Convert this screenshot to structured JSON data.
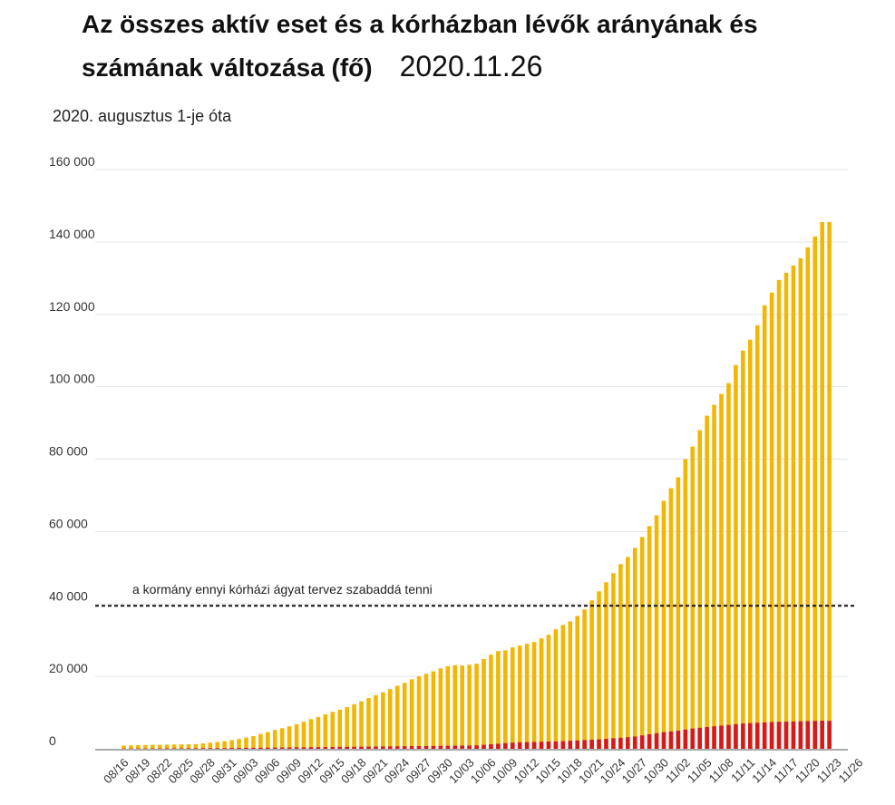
{
  "title": {
    "main_line1": "Az összes aktív eset és a kórházban lévők arányának és",
    "main_line2": "számának változása (fő)",
    "date": "2020.11.26"
  },
  "subtitle": "2020. augusztus 1-je óta",
  "colors": {
    "active_cases": "#f2b705",
    "hospitalized": "#d7191c",
    "reference_line": "#111111",
    "gridline": "#e3e3e3",
    "baseline": "#aaaaaa"
  },
  "annotation": {
    "text": "a kormány ennyi kórházi ágyat tervez szabaddá tenni",
    "value": 39500
  },
  "chart_data": {
    "type": "bar",
    "stacked": false,
    "ylim": [
      0,
      160000
    ],
    "y_ticks": [
      "0",
      "20 000",
      "40 000",
      "60 000",
      "80 000",
      "100 000",
      "120 000",
      "140 000",
      "160 000"
    ],
    "y_tick_values": [
      0,
      20000,
      40000,
      60000,
      80000,
      100000,
      120000,
      140000,
      160000
    ],
    "x_tick_labels": [
      "08/16",
      "08/19",
      "08/22",
      "08/25",
      "08/28",
      "08/31",
      "09/03",
      "09/06",
      "09/09",
      "09/12",
      "09/15",
      "09/18",
      "09/21",
      "09/24",
      "09/27",
      "09/30",
      "10/03",
      "10/06",
      "10/09",
      "10/12",
      "10/15",
      "10/18",
      "10/21",
      "10/24",
      "10/27",
      "10/30",
      "11/02",
      "11/05",
      "11/08",
      "11/11",
      "11/14",
      "11/17",
      "11/20",
      "11/23",
      "11/26"
    ],
    "first_category": "08/16",
    "category_step_days": 1,
    "grid": true,
    "series": [
      {
        "values": [
          900,
          950,
          1000,
          1050,
          1100,
          1100,
          1150,
          1200,
          1200,
          1250,
          1300,
          1500,
          1700,
          1900,
          2100,
          2400,
          2700,
          3100,
          3500,
          4100,
          4600,
          5200,
          5700,
          6200,
          6800,
          7500,
          8200,
          8800,
          9500,
          10200,
          10800,
          11500,
          12300,
          13100,
          14000,
          14800,
          15600,
          16500,
          17400,
          18200,
          19200,
          20000,
          20700,
          21400,
          22200,
          22800,
          23100,
          23000,
          23200,
          23500,
          24800,
          26000,
          27000,
          27200,
          28000,
          28500,
          29000,
          29500,
          30500,
          31500,
          33000,
          34200,
          35200,
          36700,
          38500,
          41000,
          43500,
          46000,
          48500,
          51000,
          53000,
          55500,
          58500,
          61500,
          64500,
          68500,
          72000,
          75000,
          80000,
          83500,
          88000,
          92000,
          95000,
          98000,
          101000,
          106000,
          110000,
          113000,
          117000,
          122500,
          126000,
          129500,
          131500,
          133500,
          135500,
          138500,
          141500,
          145500,
          145500
        ],
        "color": "#f2b705"
      },
      {
        "values": [
          80,
          85,
          90,
          95,
          100,
          110,
          120,
          130,
          140,
          150,
          160,
          170,
          180,
          190,
          200,
          220,
          240,
          260,
          280,
          300,
          320,
          340,
          360,
          380,
          400,
          420,
          440,
          460,
          480,
          500,
          520,
          540,
          560,
          580,
          600,
          620,
          640,
          660,
          680,
          700,
          720,
          740,
          760,
          780,
          800,
          830,
          860,
          880,
          900,
          950,
          1100,
          1250,
          1400,
          1550,
          1700,
          1800,
          1850,
          1900,
          1950,
          2000,
          2050,
          2100,
          2200,
          2300,
          2400,
          2500,
          2600,
          2750,
          2900,
          3050,
          3200,
          3400,
          3700,
          4000,
          4300,
          4600,
          4800,
          5000,
          5300,
          5600,
          5800,
          6000,
          6200,
          6400,
          6600,
          6800,
          7000,
          7100,
          7200,
          7300,
          7400,
          7450,
          7500,
          7550,
          7600,
          7650,
          7700,
          7750,
          7700
        ],
        "color": "#d7191c"
      }
    ]
  }
}
